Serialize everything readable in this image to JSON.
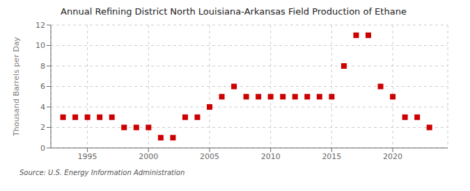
{
  "chart_data": {
    "type": "scatter",
    "title": "Annual Refining District North Louisiana-Arkansas Field Production of Ethane",
    "ylabel": "Thousand Barrels per Day",
    "annotation": "Source: U.S. Energy Information Administration",
    "x": [
      1993,
      1994,
      1995,
      1996,
      1997,
      1998,
      1999,
      2000,
      2001,
      2002,
      2003,
      2004,
      2005,
      2006,
      2007,
      2008,
      2009,
      2010,
      2011,
      2012,
      2013,
      2014,
      2015,
      2016,
      2017,
      2018,
      2019,
      2020,
      2021,
      2022,
      2023
    ],
    "values": [
      3,
      3,
      3,
      3,
      3,
      2,
      2,
      2,
      1,
      1,
      3,
      3,
      4,
      5,
      6,
      5,
      5,
      5,
      5,
      5,
      5,
      5,
      5,
      8,
      11,
      11,
      6,
      5,
      3,
      3,
      2
    ],
    "color": "#cc0000",
    "marker": "square",
    "xlim": [
      1992,
      2024.5
    ],
    "xticks": [
      1995,
      2000,
      2005,
      2010,
      2015,
      2020
    ],
    "ylim": [
      0,
      12
    ],
    "yticks": [
      0,
      2,
      4,
      6,
      8,
      10,
      12
    ],
    "grid": true
  }
}
